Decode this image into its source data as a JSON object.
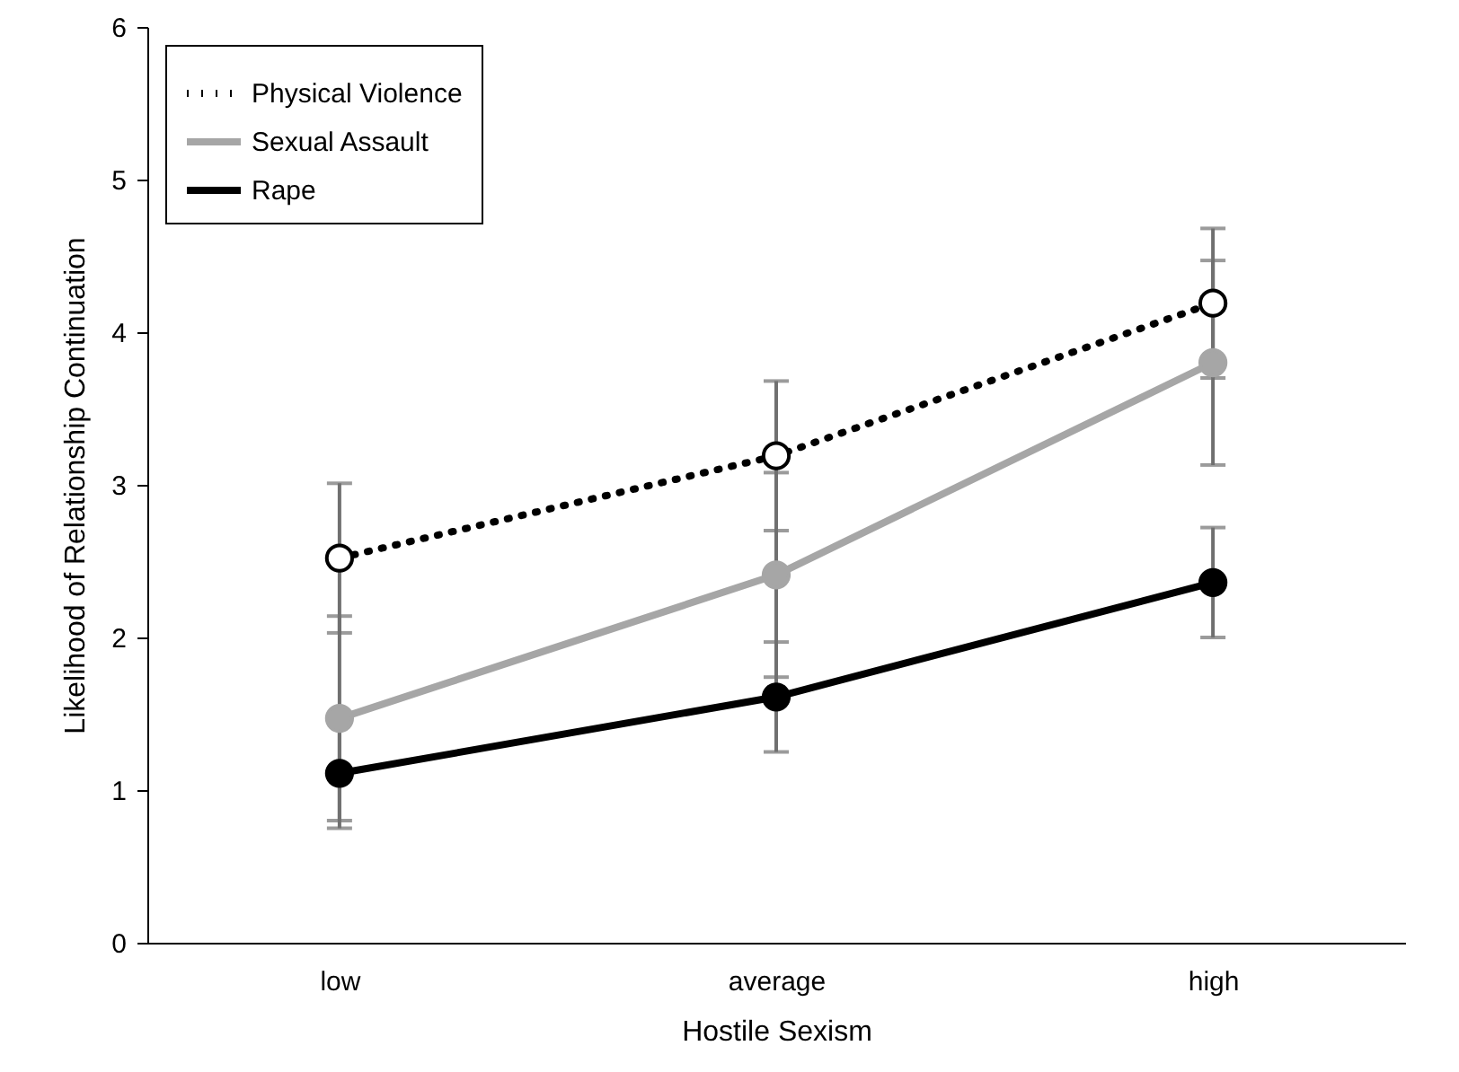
{
  "chart_data": {
    "type": "line",
    "xlabel": "Hostile Sexism",
    "ylabel": "Likelihood of Relationship Continuation",
    "categories": [
      "low",
      "average",
      "high"
    ],
    "ylim": [
      0,
      6
    ],
    "yticks": [
      0,
      1,
      2,
      3,
      4,
      5,
      6
    ],
    "grid": false,
    "legend": "top left",
    "marker": "circle",
    "series": [
      {
        "name": "Physical Violence",
        "color": "#000000",
        "line_style": "dotted",
        "values": [
          2.52,
          3.19,
          4.19
        ],
        "errors": [
          0.49,
          0.49,
          0.49
        ]
      },
      {
        "name": "Sexual Assault",
        "color": "#a6a6a6",
        "line_style": "solid",
        "values": [
          1.47,
          2.41,
          3.8
        ],
        "errors": [
          0.67,
          0.67,
          0.67
        ]
      },
      {
        "name": "Rape",
        "color": "#000000",
        "line_style": "solid",
        "values": [
          1.11,
          1.61,
          2.36
        ],
        "errors": [
          0.36,
          0.36,
          0.36
        ]
      }
    ]
  }
}
